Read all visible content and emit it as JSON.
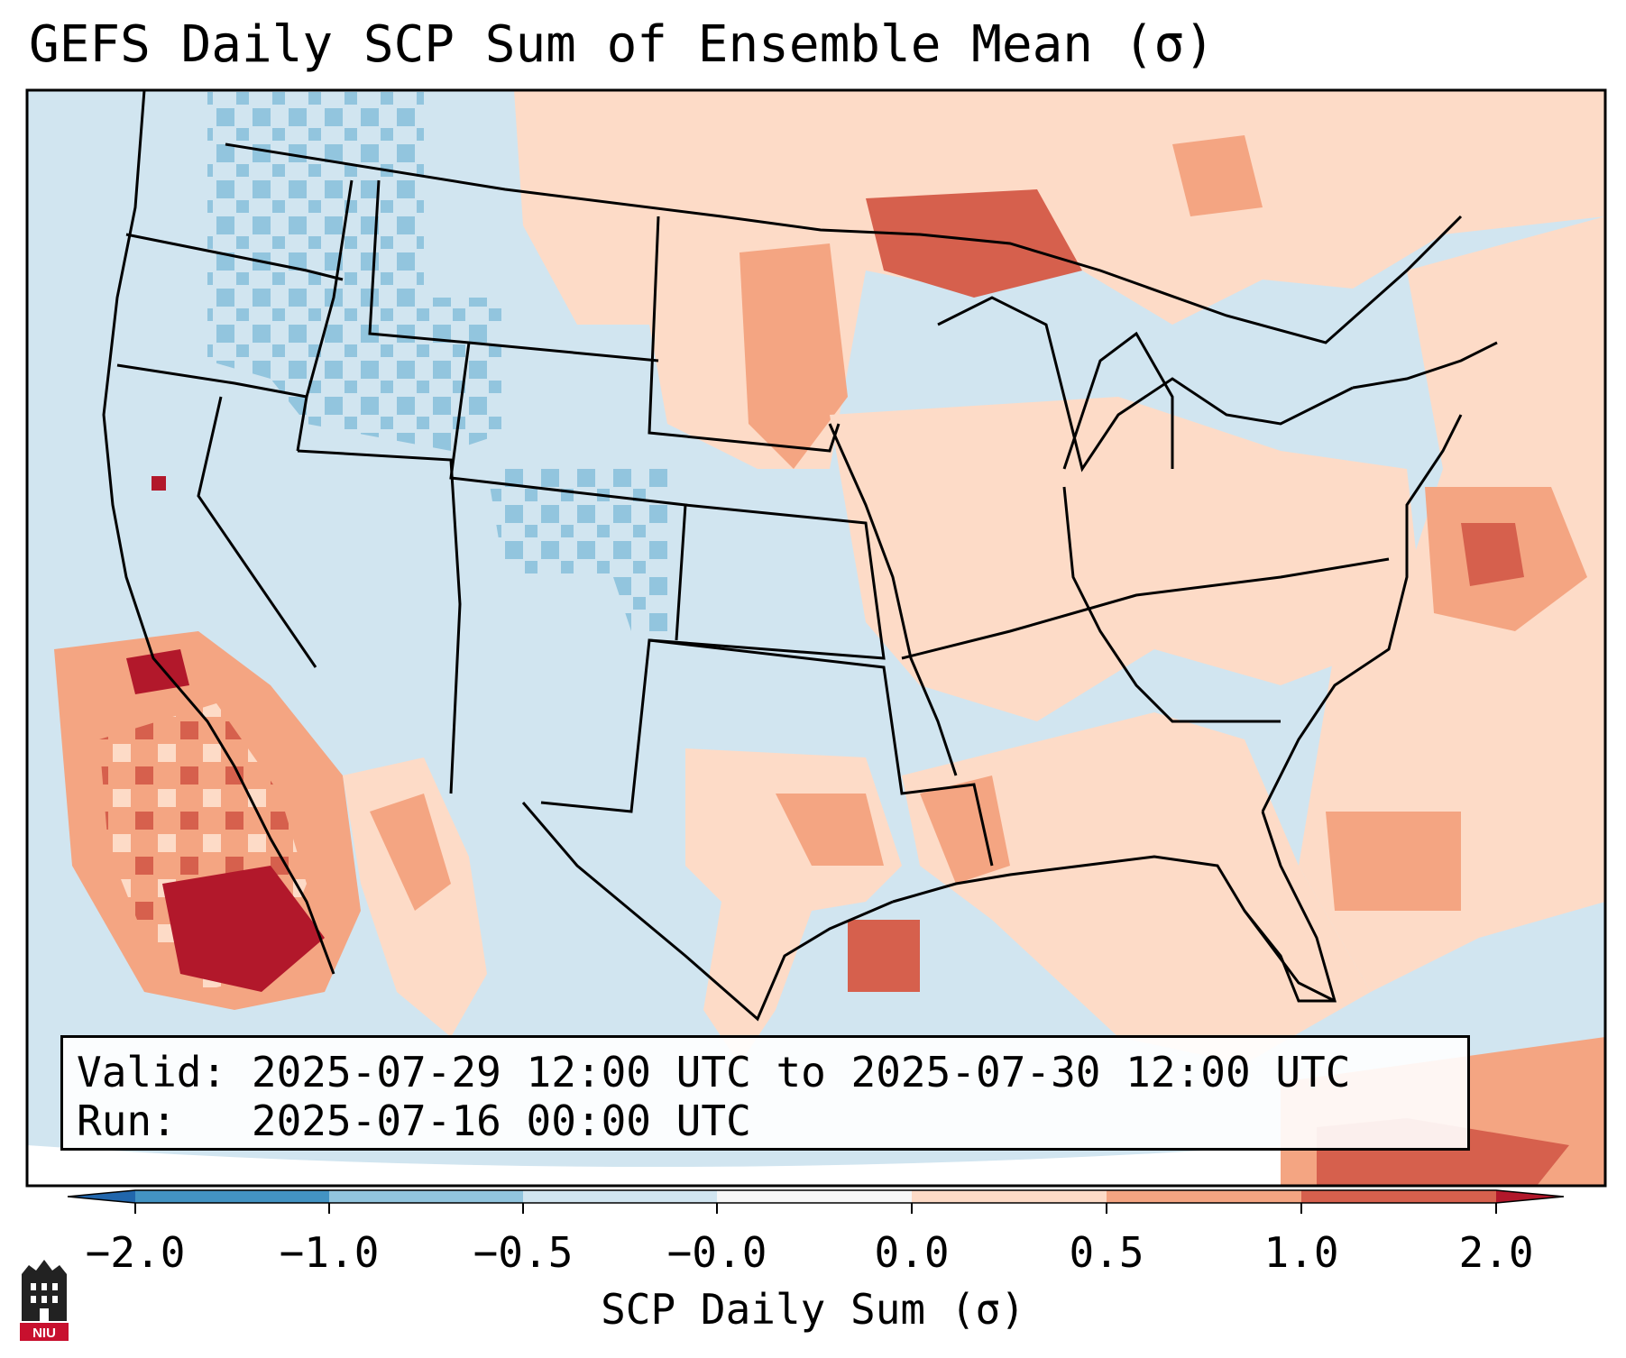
{
  "title": "GEFS Daily SCP Sum of Ensemble Mean (σ)",
  "info": {
    "valid_label": "Valid:",
    "valid_value": "2025-07-29 12:00 UTC to 2025-07-30 12:00 UTC",
    "run_label": "Run:",
    "run_value": "2025-07-16 00:00 UTC"
  },
  "colorbar": {
    "label": "SCP Daily Sum (σ)",
    "tick_labels": [
      "−2.0",
      "−1.0",
      "−0.5",
      "−0.0",
      "0.0",
      "0.5",
      "1.0",
      "2.0"
    ],
    "bins": [
      {
        "range": "-2.0 to -1.0",
        "color": "#4393c3"
      },
      {
        "range": "-1.0 to -0.5",
        "color": "#92c5de"
      },
      {
        "range": "-0.5 to -0.0",
        "color": "#d1e5f0"
      },
      {
        "range": "-0.0 to 0.0",
        "color": "#f7f7f7"
      },
      {
        "range": "0.0 to 0.5",
        "color": "#fddbc7"
      },
      {
        "range": "0.5 to 1.0",
        "color": "#f4a582"
      },
      {
        "range": "1.0 to 2.0",
        "color": "#d6604d"
      }
    ],
    "under_color": "#2166ac",
    "over_color": "#b2182b"
  },
  "logo": {
    "icon": "niu-logo-icon",
    "text": "NIU"
  }
}
